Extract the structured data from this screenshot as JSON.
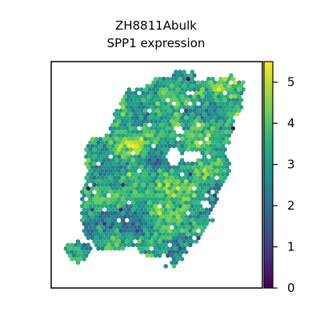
{
  "chart_data": {
    "type": "scatter",
    "title": "ZH8811Abulk",
    "subtitle": "SPP1 expression",
    "xlabel": "",
    "ylabel": "",
    "colorbar": {
      "colormap": "viridis",
      "range": [
        0,
        5.5
      ],
      "ticks": [
        0,
        1,
        2,
        3,
        4,
        5
      ],
      "tick_labels": [
        "0",
        "1",
        "2",
        "3",
        "4",
        "5"
      ]
    },
    "axes_ticks_visible": false,
    "grid": false,
    "marker": "hexagonal spot",
    "value_summary": {
      "typical_range": [
        2,
        5.4
      ],
      "dominant_values": [
        3,
        4
      ],
      "isolated_low_values": [
        0,
        1
      ]
    },
    "tissue_outline": [
      [
        0.36,
        0.82
      ],
      [
        0.41,
        0.82
      ],
      [
        0.43,
        0.85
      ],
      [
        0.47,
        0.87
      ],
      [
        0.51,
        0.86
      ],
      [
        0.54,
        0.9
      ],
      [
        0.58,
        0.91
      ],
      [
        0.62,
        0.87
      ],
      [
        0.66,
        0.81
      ],
      [
        0.7,
        0.79
      ],
      [
        0.76,
        0.7
      ],
      [
        0.77,
        0.63
      ],
      [
        0.81,
        0.61
      ],
      [
        0.85,
        0.59
      ],
      [
        0.86,
        0.53
      ],
      [
        0.85,
        0.46
      ],
      [
        0.83,
        0.4
      ],
      [
        0.85,
        0.34
      ],
      [
        0.87,
        0.27
      ],
      [
        0.9,
        0.21
      ],
      [
        0.91,
        0.15
      ],
      [
        0.92,
        0.09
      ],
      [
        0.88,
        0.08
      ],
      [
        0.84,
        0.05
      ],
      [
        0.8,
        0.08
      ],
      [
        0.76,
        0.07
      ],
      [
        0.71,
        0.09
      ],
      [
        0.67,
        0.05
      ],
      [
        0.6,
        0.04
      ],
      [
        0.55,
        0.07
      ],
      [
        0.51,
        0.06
      ],
      [
        0.45,
        0.11
      ],
      [
        0.4,
        0.13
      ],
      [
        0.36,
        0.12
      ],
      [
        0.33,
        0.17
      ],
      [
        0.31,
        0.22
      ],
      [
        0.29,
        0.26
      ],
      [
        0.27,
        0.27
      ],
      [
        0.28,
        0.3
      ],
      [
        0.23,
        0.33
      ],
      [
        0.21,
        0.33
      ],
      [
        0.17,
        0.36
      ],
      [
        0.16,
        0.42
      ],
      [
        0.17,
        0.48
      ],
      [
        0.16,
        0.53
      ],
      [
        0.14,
        0.56
      ],
      [
        0.14,
        0.61
      ],
      [
        0.14,
        0.66
      ],
      [
        0.14,
        0.71
      ],
      [
        0.15,
        0.76
      ],
      [
        0.19,
        0.79
      ],
      [
        0.21,
        0.84
      ],
      [
        0.25,
        0.83
      ],
      [
        0.29,
        0.84
      ],
      [
        0.32,
        0.83
      ]
    ],
    "detached_fragment": [
      [
        0.06,
        0.83
      ],
      [
        0.09,
        0.88
      ],
      [
        0.14,
        0.89
      ],
      [
        0.18,
        0.86
      ],
      [
        0.19,
        0.82
      ],
      [
        0.15,
        0.79
      ],
      [
        0.1,
        0.79
      ]
    ],
    "holes": [
      {
        "center": [
          0.58,
          0.42
        ],
        "radius": 0.038
      },
      {
        "center": [
          0.66,
          0.42
        ],
        "radius": 0.032
      },
      {
        "center": [
          0.61,
          0.3
        ],
        "radius": 0.02
      },
      {
        "center": [
          0.73,
          0.63
        ],
        "radius": 0.022
      },
      {
        "center": [
          0.55,
          0.88
        ],
        "radius": 0.02
      }
    ],
    "bays": [
      {
        "center": [
          0.91,
          0.64
        ],
        "radius": 0.13
      },
      {
        "center": [
          0.93,
          0.55
        ],
        "radius": 0.1
      }
    ],
    "dense_high_zones": [
      [
        0.2,
        0.28
      ],
      [
        0.34,
        0.36
      ],
      [
        0.43,
        0.34
      ],
      [
        0.5,
        0.66
      ],
      [
        0.56,
        0.52
      ],
      [
        0.66,
        0.59
      ],
      [
        0.72,
        0.32
      ],
      [
        0.81,
        0.12
      ]
    ],
    "dense_low_zones": [
      [
        0.16,
        0.78
      ],
      [
        0.24,
        0.7
      ],
      [
        0.31,
        0.69
      ],
      [
        0.4,
        0.75
      ],
      [
        0.47,
        0.41
      ],
      [
        0.62,
        0.78
      ],
      [
        0.78,
        0.55
      ]
    ]
  }
}
